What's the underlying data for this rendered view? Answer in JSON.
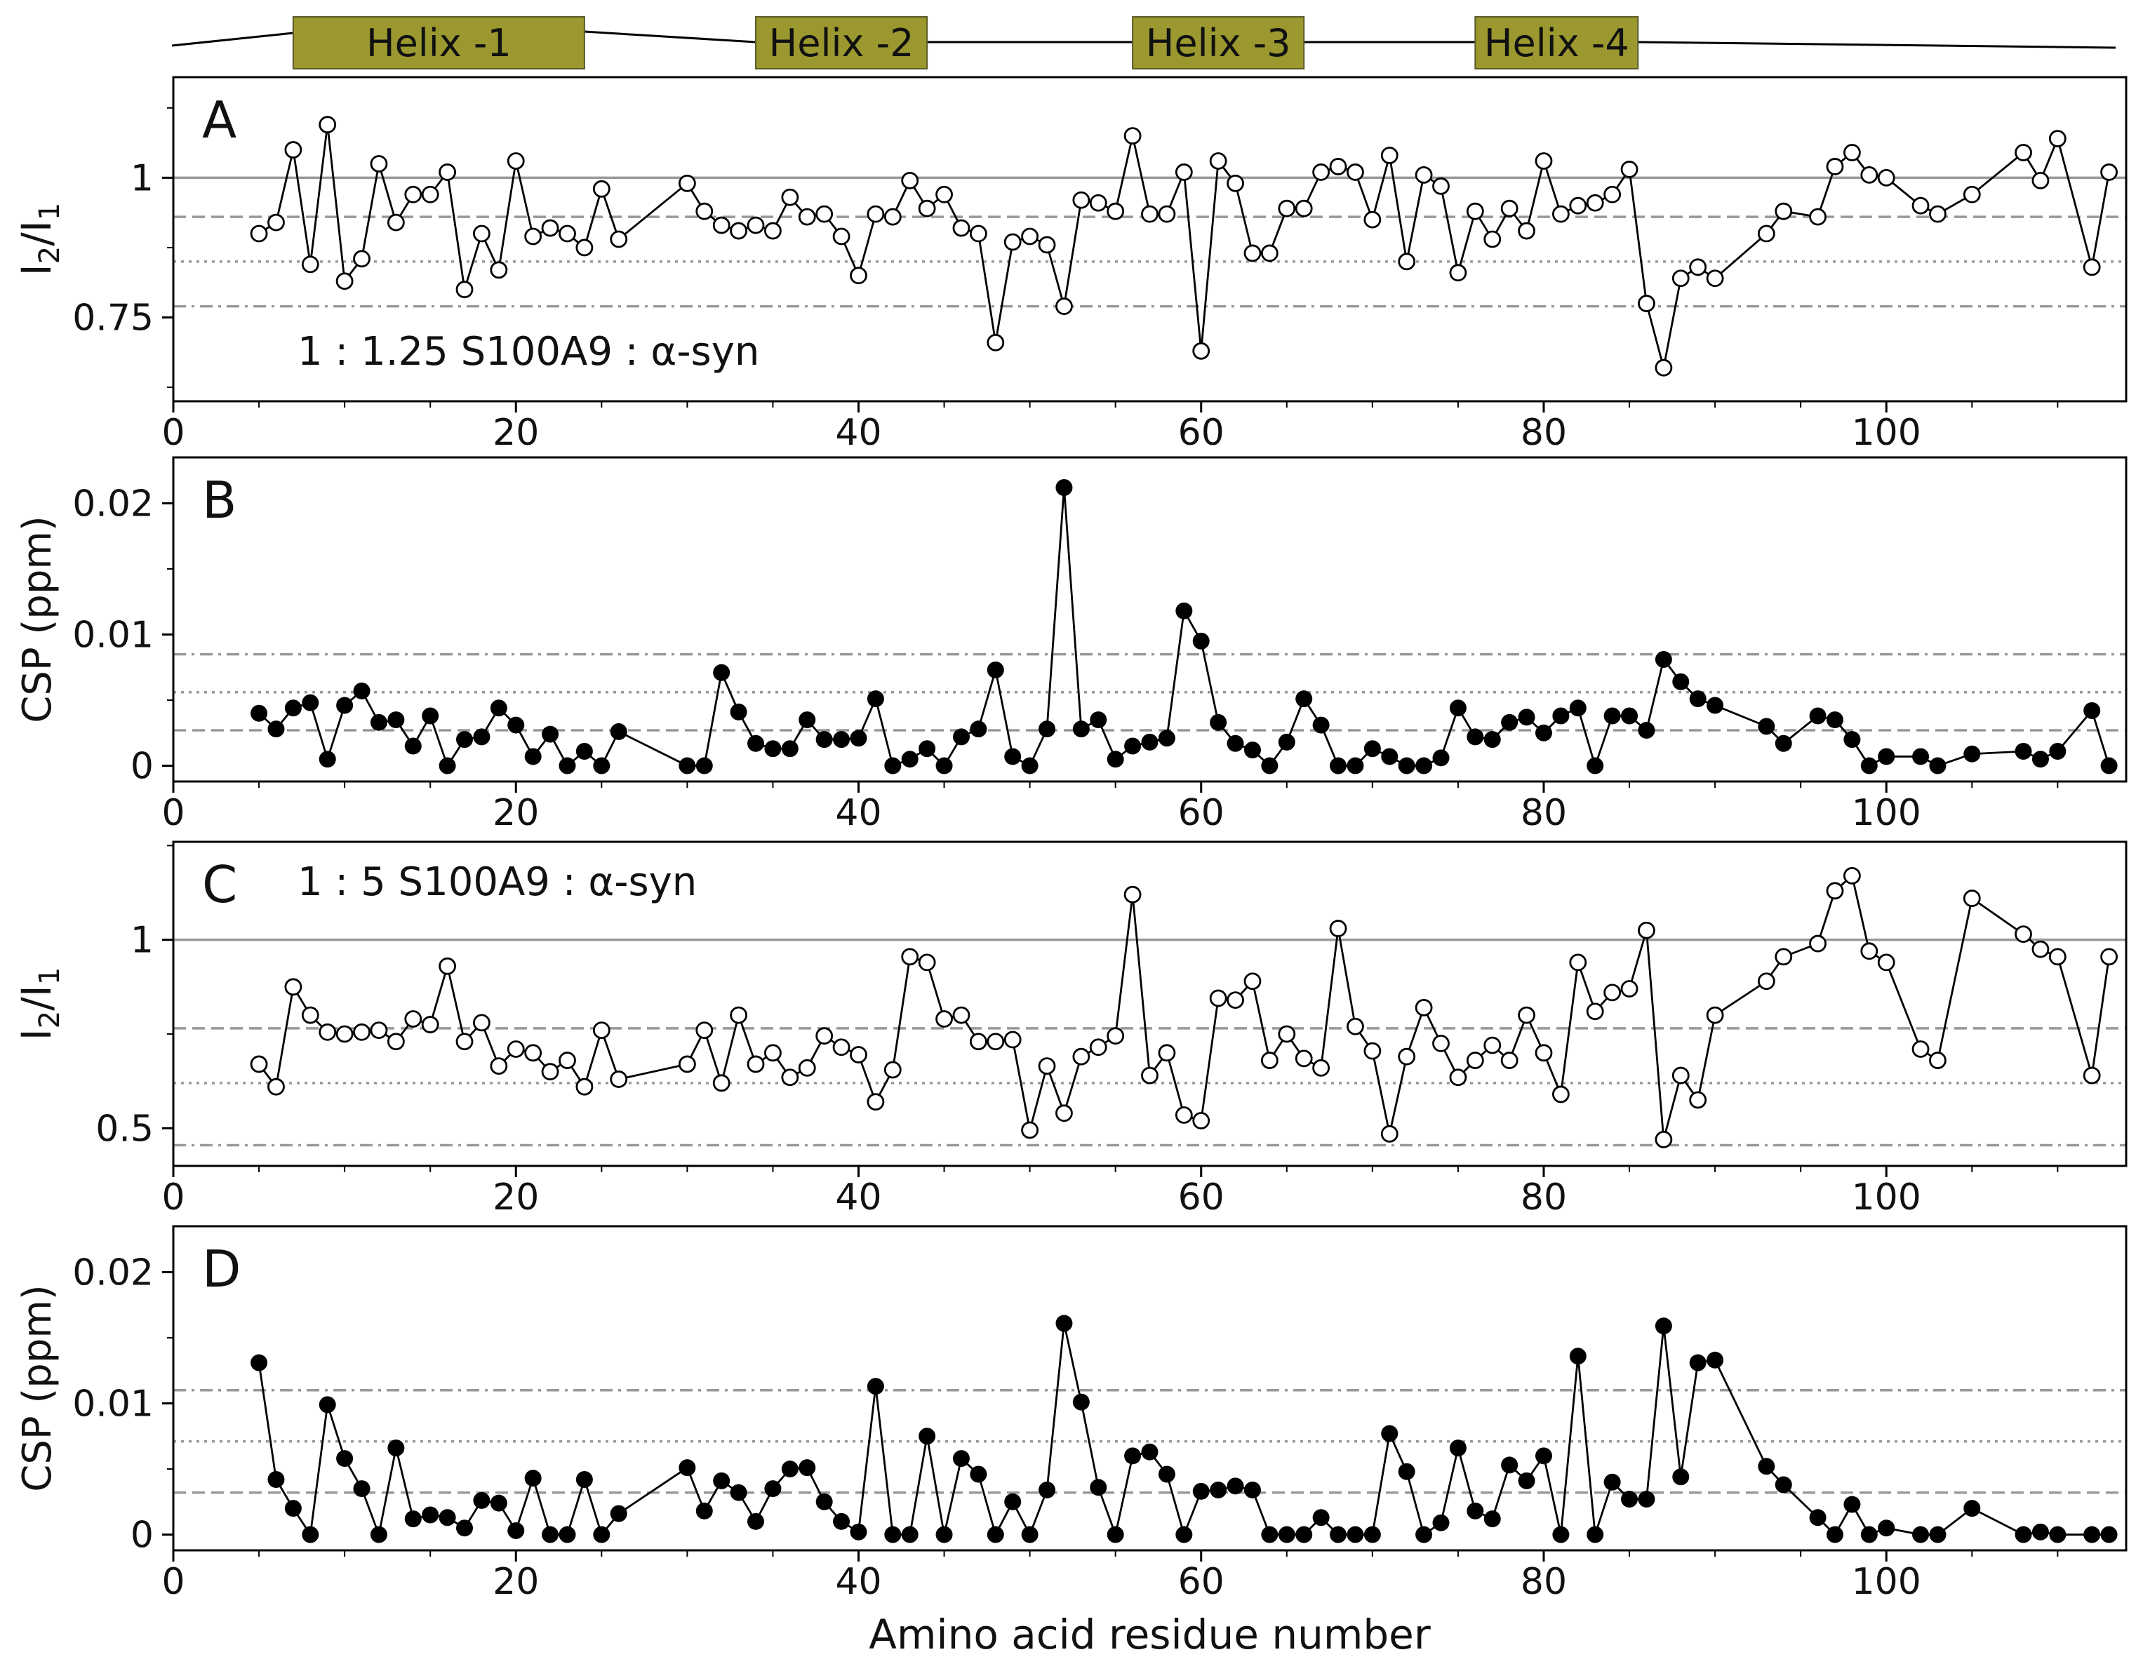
{
  "chart_data": [
    {
      "type": "scatter",
      "panel_label": "A",
      "annotation": "1 : 1.25  S100A9 : α-syn",
      "ylabel": "I2/I1",
      "xlim": [
        0,
        114
      ],
      "ylim": [
        0.6,
        1.18
      ],
      "yticks": [
        0.75,
        1
      ],
      "marker": "open",
      "ref_lines": [
        {
          "y": 1.0,
          "style": "solid"
        },
        {
          "y": 0.93,
          "style": "dashed"
        },
        {
          "y": 0.85,
          "style": "dotted"
        },
        {
          "y": 0.77,
          "style": "dashdot"
        }
      ],
      "x": [
        5,
        6,
        7,
        8,
        9,
        10,
        11,
        12,
        13,
        14,
        15,
        16,
        17,
        18,
        19,
        20,
        21,
        22,
        23,
        24,
        25,
        26,
        30,
        31,
        32,
        33,
        34,
        35,
        36,
        37,
        38,
        39,
        40,
        41,
        42,
        43,
        44,
        45,
        46,
        47,
        48,
        49,
        50,
        51,
        52,
        53,
        54,
        55,
        56,
        57,
        58,
        59,
        60,
        61,
        62,
        63,
        64,
        65,
        66,
        67,
        68,
        69,
        70,
        71,
        72,
        73,
        74,
        75,
        76,
        77,
        78,
        79,
        80,
        81,
        82,
        83,
        84,
        85,
        86,
        87,
        88,
        89,
        90,
        93,
        94,
        96,
        97,
        98,
        99,
        100,
        102,
        103,
        105,
        108,
        109,
        110,
        112,
        113
      ],
      "y": [
        0.9,
        0.92,
        1.05,
        0.845,
        1.095,
        0.815,
        0.855,
        1.025,
        0.92,
        0.97,
        0.97,
        1.01,
        0.8,
        0.9,
        0.835,
        1.03,
        0.895,
        0.91,
        0.9,
        0.875,
        0.98,
        0.89,
        0.99,
        0.94,
        0.915,
        0.905,
        0.915,
        0.905,
        0.965,
        0.93,
        0.935,
        0.895,
        0.825,
        0.935,
        0.93,
        0.995,
        0.945,
        0.97,
        0.91,
        0.9,
        0.705,
        0.885,
        0.895,
        0.88,
        0.77,
        0.96,
        0.955,
        0.94,
        1.075,
        0.935,
        0.935,
        1.01,
        0.69,
        1.03,
        0.99,
        0.865,
        0.865,
        0.945,
        0.945,
        1.01,
        1.02,
        1.01,
        0.925,
        1.04,
        0.85,
        1.005,
        0.985,
        0.83,
        0.94,
        0.89,
        0.945,
        0.905,
        1.03,
        0.935,
        0.95,
        0.955,
        0.97,
        1.015,
        0.775,
        0.66,
        0.82,
        0.84,
        0.82,
        0.9,
        0.94,
        0.93,
        1.02,
        1.045,
        1.005,
        1.0,
        0.95,
        0.935,
        0.97,
        1.045,
        0.995,
        1.07,
        0.84,
        1.01
      ]
    },
    {
      "type": "scatter",
      "panel_label": "B",
      "ylabel": "CSP (ppm)",
      "xlim": [
        0,
        114
      ],
      "ylim": [
        -0.0012,
        0.0235
      ],
      "yticks": [
        0,
        0.01,
        0.02
      ],
      "marker": "filled",
      "ref_lines": [
        {
          "y": 0.0085,
          "style": "dashdot"
        },
        {
          "y": 0.0056,
          "style": "dotted"
        },
        {
          "y": 0.0027,
          "style": "dashed"
        }
      ],
      "x": [
        5,
        6,
        7,
        8,
        9,
        10,
        11,
        12,
        13,
        14,
        15,
        16,
        17,
        18,
        19,
        20,
        21,
        22,
        23,
        24,
        25,
        26,
        30,
        31,
        32,
        33,
        34,
        35,
        36,
        37,
        38,
        39,
        40,
        41,
        42,
        43,
        44,
        45,
        46,
        47,
        48,
        49,
        50,
        51,
        52,
        53,
        54,
        55,
        56,
        57,
        58,
        59,
        60,
        61,
        62,
        63,
        64,
        65,
        66,
        67,
        68,
        69,
        70,
        71,
        72,
        73,
        74,
        75,
        76,
        77,
        78,
        79,
        80,
        81,
        82,
        83,
        84,
        85,
        86,
        87,
        88,
        89,
        90,
        93,
        94,
        96,
        97,
        98,
        99,
        100,
        102,
        103,
        105,
        108,
        109,
        110,
        112,
        113
      ],
      "y": [
        0.004,
        0.0028,
        0.0044,
        0.0048,
        0.0005,
        0.0046,
        0.0057,
        0.0033,
        0.0035,
        0.0015,
        0.0038,
        0.0,
        0.002,
        0.0022,
        0.0044,
        0.0031,
        0.0007,
        0.0024,
        0.0,
        0.0011,
        0.0,
        0.0026,
        0.0,
        0.0,
        0.0071,
        0.0041,
        0.0017,
        0.0013,
        0.0013,
        0.0035,
        0.002,
        0.002,
        0.0021,
        0.0051,
        0.0,
        0.0005,
        0.0013,
        0.0,
        0.0022,
        0.0028,
        0.0073,
        0.0007,
        0.0,
        0.0028,
        0.0212,
        0.0028,
        0.0035,
        0.0005,
        0.0015,
        0.0018,
        0.0021,
        0.0118,
        0.0095,
        0.0033,
        0.0017,
        0.0012,
        0.0,
        0.0018,
        0.0051,
        0.0031,
        0.0,
        0.0,
        0.0013,
        0.0007,
        0.0,
        0.0,
        0.0006,
        0.0044,
        0.0022,
        0.002,
        0.0033,
        0.0037,
        0.0025,
        0.0038,
        0.0044,
        0.0,
        0.0038,
        0.0038,
        0.0027,
        0.0081,
        0.0064,
        0.0051,
        0.0046,
        0.003,
        0.0017,
        0.0038,
        0.0035,
        0.002,
        0.0,
        0.0007,
        0.0007,
        0.0,
        0.0009,
        0.0011,
        0.0005,
        0.0011,
        0.0042,
        0.0
      ]
    },
    {
      "type": "scatter",
      "panel_label": "C",
      "annotation": "1 : 5  S100A9 : α-syn",
      "ylabel": "I2/I1",
      "xlim": [
        0,
        114
      ],
      "ylim": [
        0.4,
        1.26
      ],
      "yticks": [
        0.5,
        1
      ],
      "marker": "open",
      "ref_lines": [
        {
          "y": 1.0,
          "style": "solid"
        },
        {
          "y": 0.765,
          "style": "dashed"
        },
        {
          "y": 0.62,
          "style": "dotted"
        },
        {
          "y": 0.455,
          "style": "dashdot"
        }
      ],
      "x": [
        5,
        6,
        7,
        8,
        9,
        10,
        11,
        12,
        13,
        14,
        15,
        16,
        17,
        18,
        19,
        20,
        21,
        22,
        23,
        24,
        25,
        26,
        30,
        31,
        32,
        33,
        34,
        35,
        36,
        37,
        38,
        39,
        40,
        41,
        42,
        43,
        44,
        45,
        46,
        47,
        48,
        49,
        50,
        51,
        52,
        53,
        54,
        55,
        56,
        57,
        58,
        59,
        60,
        61,
        62,
        63,
        64,
        65,
        66,
        67,
        68,
        69,
        70,
        71,
        72,
        73,
        74,
        75,
        76,
        77,
        78,
        79,
        80,
        81,
        82,
        83,
        84,
        85,
        86,
        87,
        88,
        89,
        90,
        93,
        94,
        96,
        97,
        98,
        99,
        100,
        102,
        103,
        105,
        108,
        109,
        110,
        112,
        113
      ],
      "y": [
        0.67,
        0.61,
        0.875,
        0.8,
        0.755,
        0.75,
        0.755,
        0.76,
        0.73,
        0.79,
        0.775,
        0.93,
        0.73,
        0.78,
        0.665,
        0.71,
        0.7,
        0.65,
        0.68,
        0.61,
        0.76,
        0.63,
        0.67,
        0.76,
        0.62,
        0.8,
        0.67,
        0.7,
        0.635,
        0.66,
        0.745,
        0.715,
        0.695,
        0.57,
        0.655,
        0.955,
        0.94,
        0.79,
        0.8,
        0.73,
        0.73,
        0.735,
        0.495,
        0.665,
        0.54,
        0.69,
        0.715,
        0.745,
        1.12,
        0.64,
        0.7,
        0.535,
        0.52,
        0.845,
        0.84,
        0.89,
        0.68,
        0.75,
        0.685,
        0.66,
        1.03,
        0.77,
        0.705,
        0.485,
        0.69,
        0.82,
        0.725,
        0.635,
        0.68,
        0.72,
        0.68,
        0.8,
        0.7,
        0.59,
        0.94,
        0.81,
        0.86,
        0.87,
        1.025,
        0.47,
        0.64,
        0.575,
        0.8,
        0.89,
        0.955,
        0.99,
        1.13,
        1.17,
        0.97,
        0.94,
        0.71,
        0.68,
        1.11,
        1.015,
        0.975,
        0.955,
        0.64,
        0.955
      ]
    },
    {
      "type": "scatter",
      "panel_label": "D",
      "ylabel": "CSP (ppm)",
      "xlabel": "Amino acid residue number",
      "xlim": [
        0,
        114
      ],
      "ylim": [
        -0.0012,
        0.0235
      ],
      "yticks": [
        0,
        0.01,
        0.02
      ],
      "marker": "filled",
      "ref_lines": [
        {
          "y": 0.011,
          "style": "dashdot"
        },
        {
          "y": 0.0071,
          "style": "dotted"
        },
        {
          "y": 0.0032,
          "style": "dashed"
        }
      ],
      "x": [
        5,
        6,
        7,
        8,
        9,
        10,
        11,
        12,
        13,
        14,
        15,
        16,
        17,
        18,
        19,
        20,
        21,
        22,
        23,
        24,
        25,
        26,
        30,
        31,
        32,
        33,
        34,
        35,
        36,
        37,
        38,
        39,
        40,
        41,
        42,
        43,
        44,
        45,
        46,
        47,
        48,
        49,
        50,
        51,
        52,
        53,
        54,
        55,
        56,
        57,
        58,
        59,
        60,
        61,
        62,
        63,
        64,
        65,
        66,
        67,
        68,
        69,
        70,
        71,
        72,
        73,
        74,
        75,
        76,
        77,
        78,
        79,
        80,
        81,
        82,
        83,
        84,
        85,
        86,
        87,
        88,
        89,
        90,
        93,
        94,
        96,
        97,
        98,
        99,
        100,
        102,
        103,
        105,
        108,
        109,
        110,
        112,
        113
      ],
      "y": [
        0.0131,
        0.0042,
        0.002,
        0.0,
        0.0099,
        0.0058,
        0.0035,
        0.0,
        0.0066,
        0.0012,
        0.0015,
        0.0013,
        0.0005,
        0.0026,
        0.0024,
        0.0003,
        0.0043,
        0.0,
        0.0,
        0.0042,
        0.0,
        0.0016,
        0.0051,
        0.0018,
        0.0041,
        0.0032,
        0.001,
        0.0035,
        0.005,
        0.0051,
        0.0025,
        0.001,
        0.0002,
        0.0113,
        0.0,
        0.0,
        0.0075,
        0.0,
        0.0058,
        0.0046,
        0.0,
        0.0025,
        0.0,
        0.0034,
        0.0161,
        0.0101,
        0.0036,
        0.0,
        0.006,
        0.0063,
        0.0046,
        0.0,
        0.0033,
        0.0034,
        0.0037,
        0.0034,
        0.0,
        0.0,
        0.0,
        0.0013,
        0.0,
        0.0,
        0.0,
        0.0077,
        0.0048,
        0.0,
        0.0009,
        0.0066,
        0.0018,
        0.0012,
        0.0053,
        0.0041,
        0.006,
        0.0,
        0.0136,
        0.0,
        0.004,
        0.0027,
        0.0027,
        0.0159,
        0.0044,
        0.0131,
        0.0133,
        0.0052,
        0.0038,
        0.0013,
        0.0,
        0.0023,
        0.0,
        0.0005,
        0.0,
        0.0,
        0.002,
        0.0,
        0.0002,
        0.0,
        0.0,
        0.0
      ]
    }
  ],
  "secondary_structure": {
    "helices": [
      {
        "label": "Helix -1",
        "start": 7,
        "end": 24
      },
      {
        "label": "Helix -2",
        "start": 34,
        "end": 44
      },
      {
        "label": "Helix -3",
        "start": 56,
        "end": 66
      },
      {
        "label": "Helix -4",
        "start": 76,
        "end": 85.5
      }
    ],
    "color": "#9b982f"
  },
  "x_tick_values": [
    0,
    20,
    40,
    60,
    80,
    100
  ],
  "colors": {
    "line": "#000000",
    "ref": "#999999",
    "axis": "#000000"
  }
}
